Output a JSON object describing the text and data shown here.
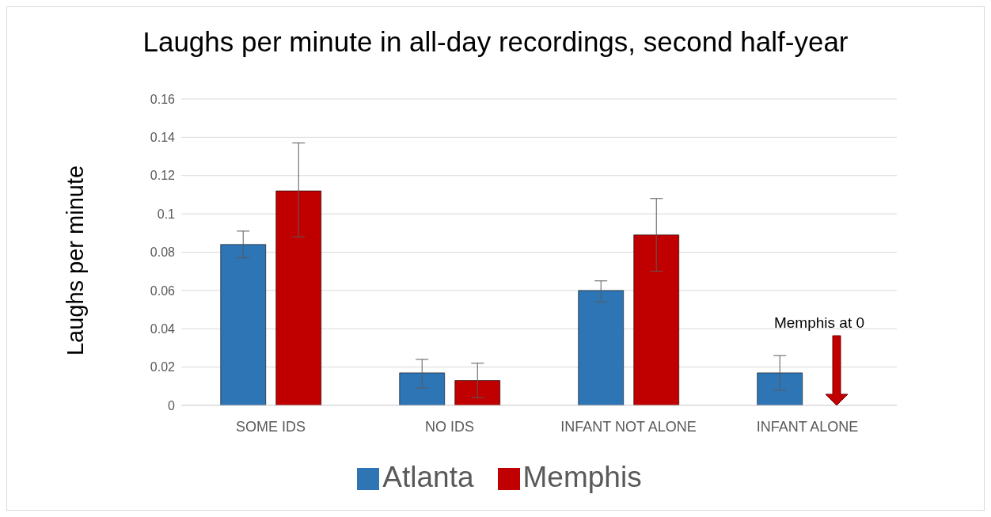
{
  "chart_data": {
    "type": "bar",
    "title": "Laughs per minute in all-day recordings, second half-year",
    "ylabel": "Laughs per minute",
    "categories": [
      "SOME IDS",
      "NO IDS",
      "INFANT NOT ALONE",
      "INFANT ALONE"
    ],
    "series": [
      {
        "name": "Atlanta",
        "color": "#2e75b6",
        "values": [
          0.084,
          0.017,
          0.06,
          0.017
        ],
        "errors": [
          [
            0.077,
            0.091
          ],
          [
            0.009,
            0.024
          ],
          [
            0.054,
            0.065
          ],
          [
            0.008,
            0.026
          ]
        ]
      },
      {
        "name": "Memphis",
        "color": "#c00000",
        "values": [
          0.112,
          0.013,
          0.089,
          0
        ],
        "errors": [
          [
            0.088,
            0.137
          ],
          [
            0.004,
            0.022
          ],
          [
            0.07,
            0.108
          ],
          null
        ]
      }
    ],
    "ylim": [
      0,
      0.16
    ],
    "yticks": [
      0,
      0.02,
      0.04,
      0.06,
      0.08,
      0.1,
      0.12,
      0.14,
      0.16
    ],
    "grid": "y",
    "legend": "bottom",
    "annotations": [
      "Memphis at 0"
    ]
  }
}
